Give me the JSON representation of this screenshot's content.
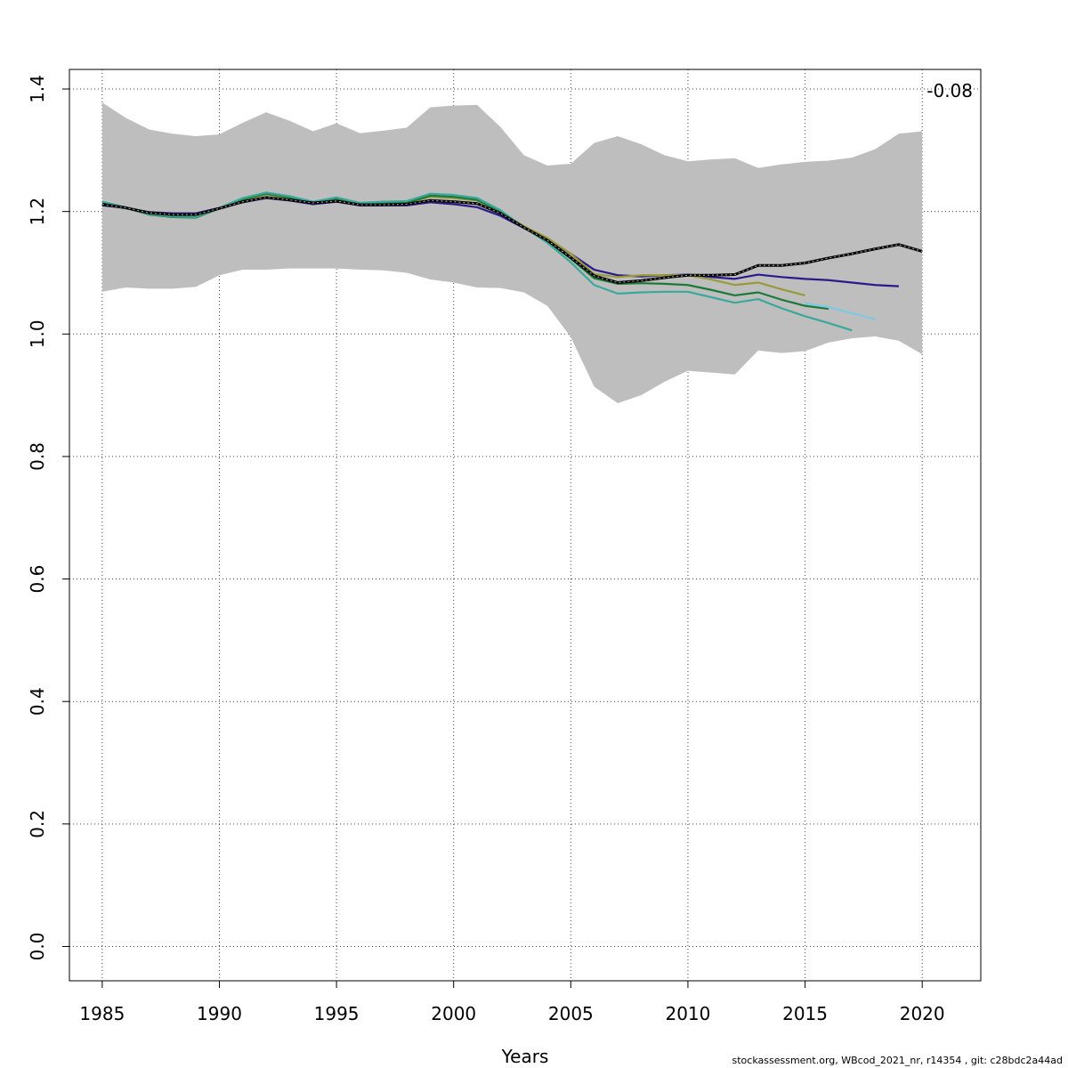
{
  "chart_data": {
    "type": "line",
    "xlabel": "Years",
    "ylabel": "",
    "xlim": [
      1983.6,
      2022.5
    ],
    "ylim": [
      -0.056,
      1.432
    ],
    "x_ticks": [
      1985,
      1990,
      1995,
      2000,
      2005,
      2010,
      2015,
      2020
    ],
    "y_ticks": [
      0.0,
      0.2,
      0.4,
      0.6,
      0.8,
      1.0,
      1.2,
      1.4
    ],
    "grid": true,
    "annotation": "-0.08",
    "confidence_band": {
      "color": "#bebebe",
      "x": [
        1985,
        1986,
        1987,
        1988,
        1989,
        1990,
        1991,
        1992,
        1993,
        1994,
        1995,
        1996,
        1997,
        1998,
        1999,
        2000,
        2001,
        2002,
        2003,
        2004,
        2005,
        2006,
        2007,
        2008,
        2009,
        2010,
        2011,
        2012,
        2013,
        2014,
        2015,
        2016,
        2017,
        2018,
        2019,
        2020
      ],
      "upper": [
        1.378,
        1.353,
        1.334,
        1.327,
        1.323,
        1.326,
        1.345,
        1.362,
        1.348,
        1.331,
        1.344,
        1.328,
        1.332,
        1.337,
        1.37,
        1.373,
        1.374,
        1.338,
        1.292,
        1.275,
        1.278,
        1.312,
        1.323,
        1.31,
        1.292,
        1.282,
        1.285,
        1.287,
        1.271,
        1.277,
        1.281,
        1.283,
        1.288,
        1.302,
        1.327,
        1.331
      ],
      "lower": [
        1.069,
        1.076,
        1.074,
        1.074,
        1.077,
        1.096,
        1.105,
        1.105,
        1.107,
        1.107,
        1.107,
        1.105,
        1.104,
        1.1,
        1.089,
        1.084,
        1.076,
        1.075,
        1.068,
        1.046,
        0.995,
        0.914,
        0.887,
        0.9,
        0.922,
        0.94,
        0.937,
        0.934,
        0.973,
        0.969,
        0.972,
        0.986,
        0.993,
        0.996,
        0.989,
        0.967
      ]
    },
    "series": [
      {
        "color": "#000000",
        "dashed": true,
        "x": [
          1985,
          1986,
          1987,
          1988,
          1989,
          1990,
          1991,
          1992,
          1993,
          1994,
          1995,
          1996,
          1997,
          1998,
          1999,
          2000,
          2001,
          2002,
          2003,
          2004,
          2005,
          2006,
          2007,
          2008,
          2009,
          2010,
          2011,
          2012,
          2013,
          2014,
          2015,
          2016,
          2017,
          2018,
          2019,
          2020
        ],
        "values": [
          1.212,
          1.206,
          1.198,
          1.195,
          1.195,
          1.205,
          1.216,
          1.223,
          1.219,
          1.214,
          1.217,
          1.211,
          1.211,
          1.212,
          1.218,
          1.216,
          1.213,
          1.197,
          1.174,
          1.153,
          1.125,
          1.095,
          1.084,
          1.087,
          1.092,
          1.096,
          1.096,
          1.097,
          1.112,
          1.112,
          1.116,
          1.124,
          1.131,
          1.139,
          1.146,
          1.135
        ]
      },
      {
        "color": "#2b1a8a",
        "x": [
          1985,
          1986,
          1987,
          1988,
          1989,
          1990,
          1991,
          1992,
          1993,
          1994,
          1995,
          1996,
          1997,
          1998,
          1999,
          2000,
          2001,
          2002,
          2003,
          2004,
          2005,
          2006,
          2007,
          2008,
          2009,
          2010,
          2011,
          2012,
          2013,
          2014,
          2015,
          2016,
          2017,
          2018,
          2019
        ],
        "values": [
          1.21,
          1.206,
          1.199,
          1.197,
          1.197,
          1.206,
          1.215,
          1.222,
          1.218,
          1.212,
          1.216,
          1.21,
          1.21,
          1.21,
          1.215,
          1.212,
          1.207,
          1.193,
          1.173,
          1.155,
          1.131,
          1.105,
          1.096,
          1.094,
          1.096,
          1.097,
          1.093,
          1.09,
          1.097,
          1.093,
          1.09,
          1.088,
          1.084,
          1.08,
          1.078
        ]
      },
      {
        "color": "#9a9a3a",
        "x": [
          1985,
          1986,
          1987,
          1988,
          1989,
          1990,
          1991,
          1992,
          1993,
          1994,
          1995,
          1996,
          1997,
          1998,
          1999,
          2000,
          2001,
          2002,
          2003,
          2004,
          2005,
          2006,
          2007,
          2008,
          2009,
          2010,
          2011,
          2012,
          2013,
          2014,
          2015
        ],
        "values": [
          1.213,
          1.206,
          1.197,
          1.194,
          1.193,
          1.205,
          1.219,
          1.228,
          1.222,
          1.214,
          1.22,
          1.212,
          1.213,
          1.214,
          1.224,
          1.222,
          1.218,
          1.2,
          1.176,
          1.157,
          1.131,
          1.098,
          1.093,
          1.096,
          1.096,
          1.096,
          1.089,
          1.08,
          1.084,
          1.073,
          1.063
        ]
      },
      {
        "color": "#1b7a3a",
        "x": [
          1985,
          1986,
          1987,
          1988,
          1989,
          1990,
          1991,
          1992,
          1993,
          1994,
          1995,
          1996,
          1997,
          1998,
          1999,
          2000,
          2001,
          2002,
          2003,
          2004,
          2005,
          2006,
          2007,
          2008,
          2009,
          2010,
          2011,
          2012,
          2013,
          2014,
          2015,
          2016
        ],
        "values": [
          1.214,
          1.206,
          1.195,
          1.191,
          1.19,
          1.205,
          1.22,
          1.229,
          1.223,
          1.214,
          1.221,
          1.212,
          1.213,
          1.214,
          1.226,
          1.224,
          1.219,
          1.2,
          1.174,
          1.152,
          1.123,
          1.091,
          1.082,
          1.083,
          1.082,
          1.08,
          1.072,
          1.063,
          1.068,
          1.056,
          1.046,
          1.041
        ]
      },
      {
        "color": "#7ec8e3",
        "x": [
          2015,
          2016,
          2017,
          2018
        ],
        "values": [
          1.05,
          1.044,
          1.034,
          1.024
        ]
      },
      {
        "color": "#3aa89a",
        "x": [
          1985,
          1986,
          1987,
          1988,
          1989,
          1990,
          1991,
          1992,
          1993,
          1994,
          1995,
          1996,
          1997,
          1998,
          1999,
          2000,
          2001,
          2002,
          2003,
          2004,
          2005,
          2006,
          2007,
          2008,
          2009,
          2010,
          2011,
          2012,
          2013,
          2014,
          2015,
          2016,
          2017
        ],
        "values": [
          1.216,
          1.207,
          1.196,
          1.192,
          1.191,
          1.206,
          1.222,
          1.231,
          1.225,
          1.216,
          1.223,
          1.214,
          1.216,
          1.217,
          1.229,
          1.227,
          1.222,
          1.202,
          1.174,
          1.149,
          1.117,
          1.08,
          1.066,
          1.068,
          1.069,
          1.069,
          1.06,
          1.051,
          1.057,
          1.042,
          1.029,
          1.018,
          1.006
        ]
      }
    ]
  },
  "footer": "stockassessment.org, WBcod_2021_nr, r14354 , git: c28bdc2a44ad"
}
